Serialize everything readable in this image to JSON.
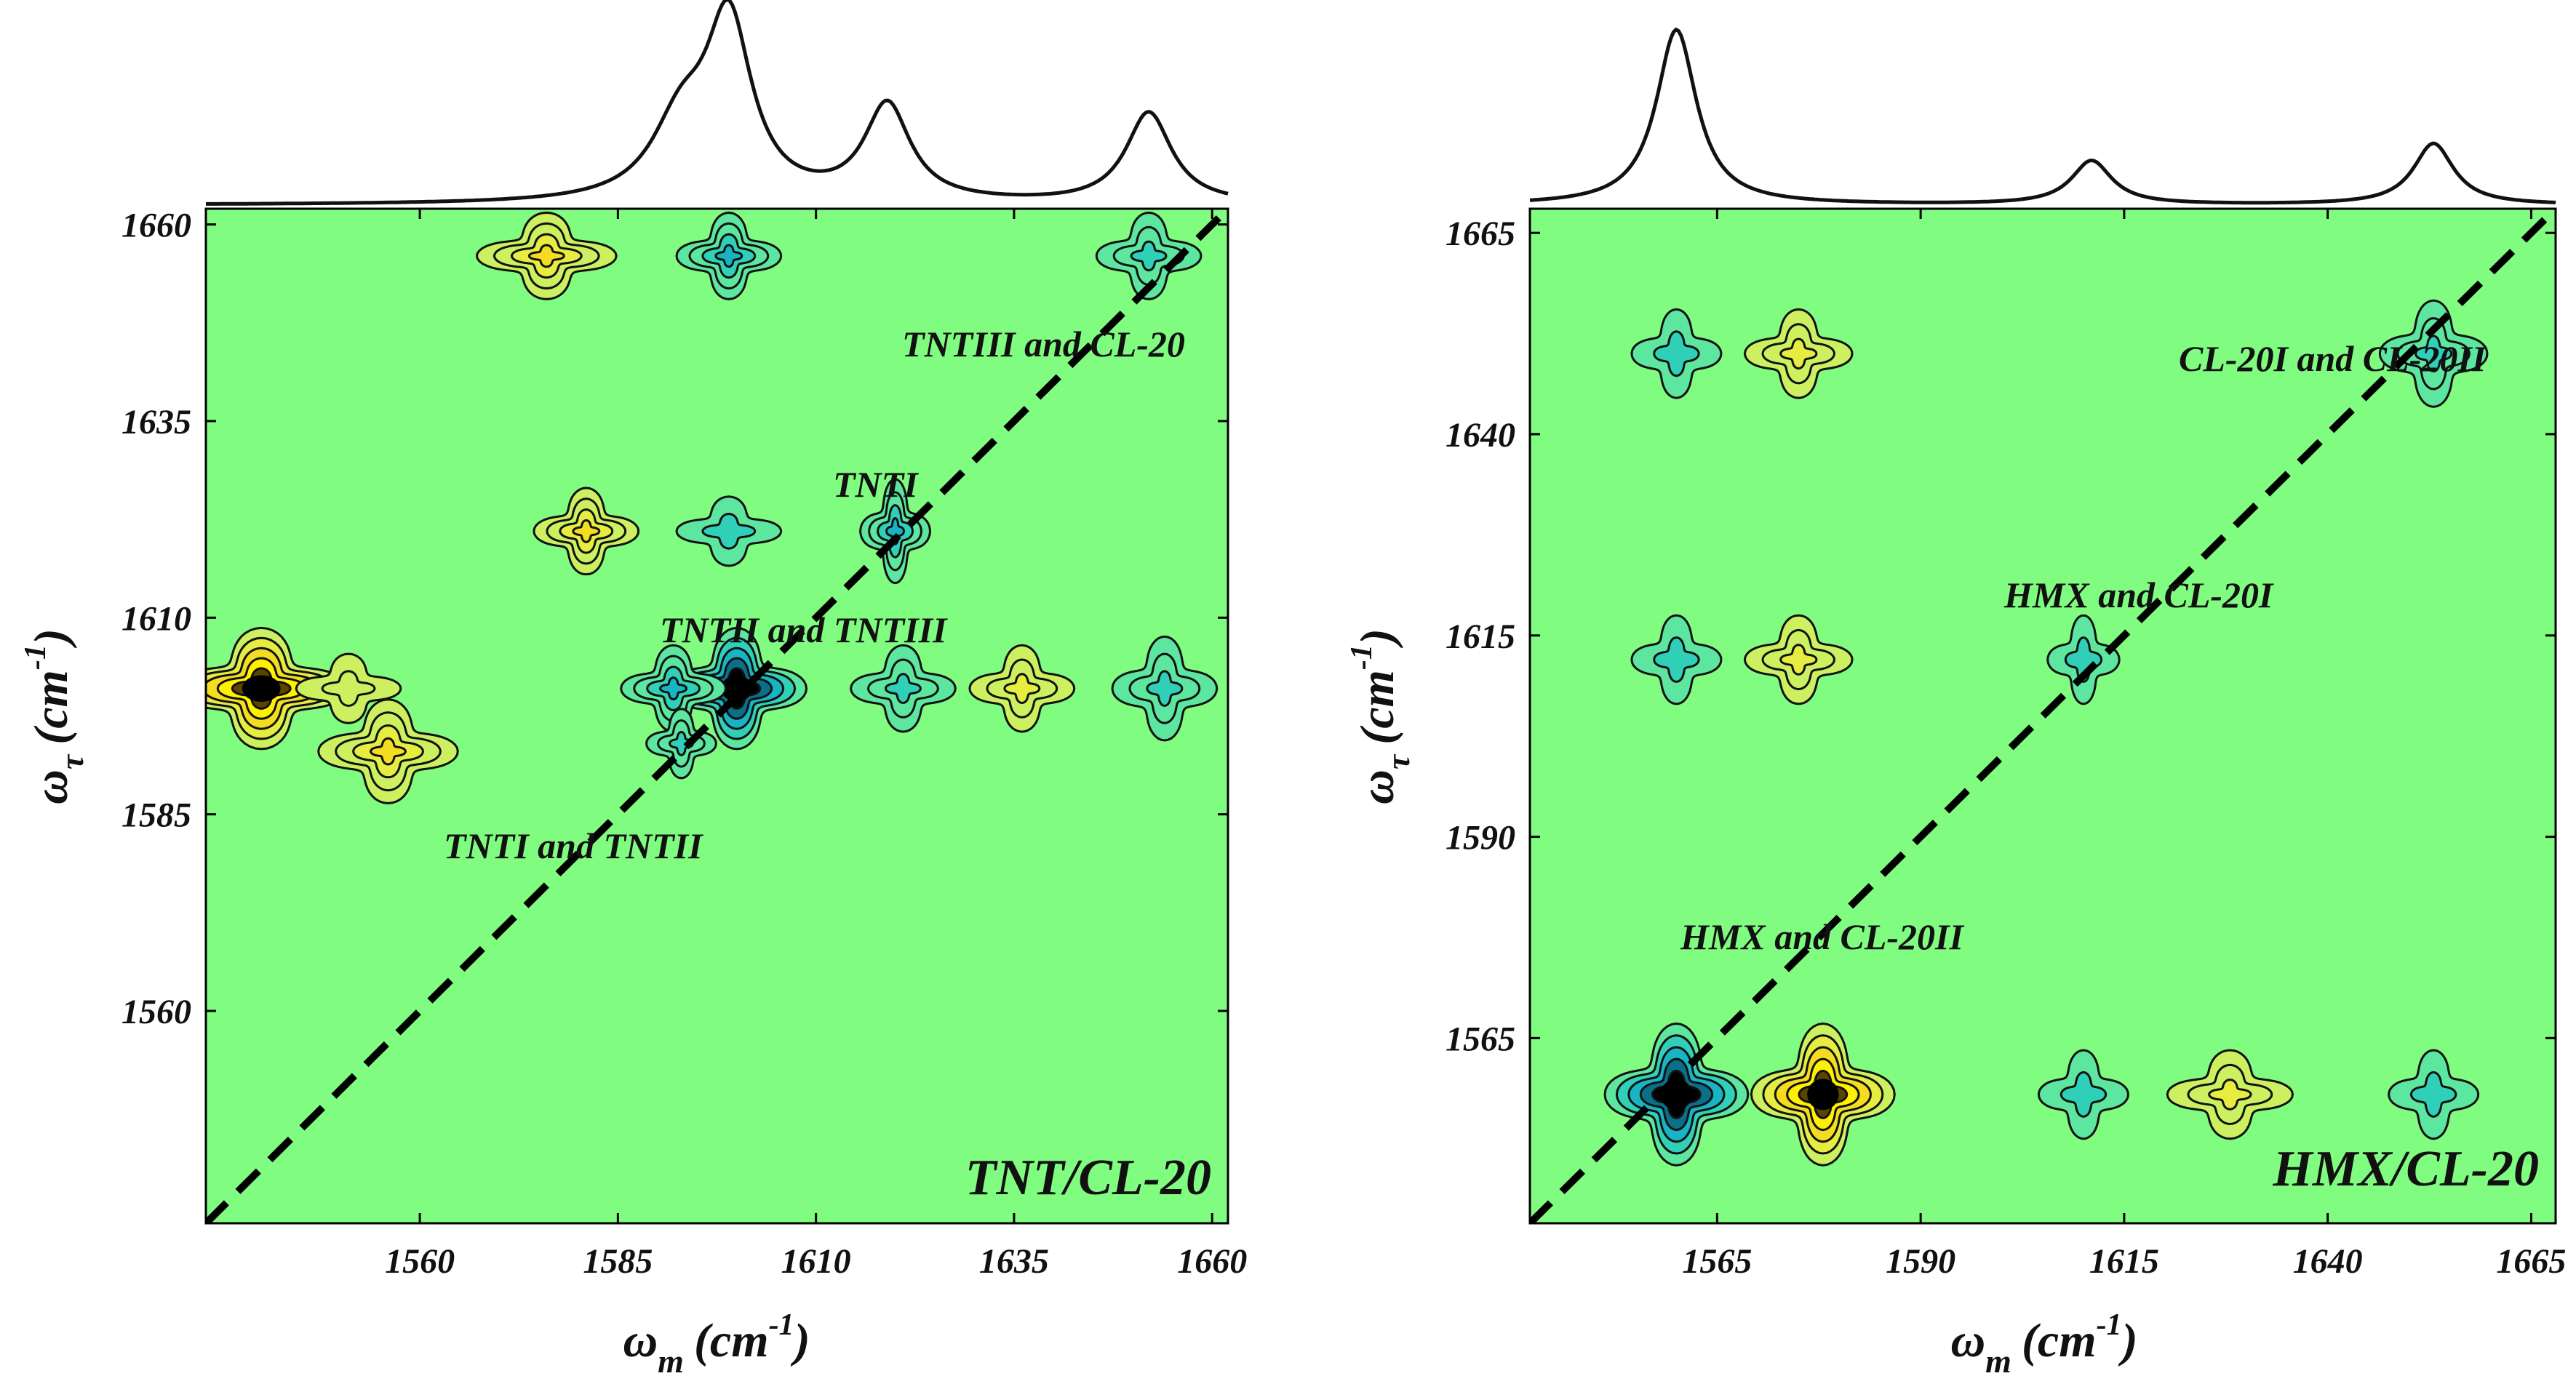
{
  "chart_data": [
    {
      "type": "heatmap",
      "subtype": "2D correlation contour map with top 1D spectrum",
      "panel_label": "TNT/CL-20",
      "xlabel": {
        "symbol": "ω",
        "subscript": "m",
        "unit": "(cm",
        "unit_sup": "-1",
        "unit_close": ")"
      },
      "ylabel": {
        "symbol": "ω",
        "subscript": "τ",
        "unit": "(cm",
        "unit_sup": "-1",
        "unit_close": ")"
      },
      "xlim": [
        1533,
        1662
      ],
      "ylim": [
        1533,
        1662
      ],
      "xticks": [
        1560,
        1585,
        1610,
        1635,
        1660
      ],
      "yticks": [
        1560,
        1585,
        1610,
        1635,
        1660
      ],
      "diagonal": true,
      "background_color": "#80fc80",
      "spectrum_peaks": [
        {
          "center": 1593,
          "width": 4.5,
          "height": 0.42
        },
        {
          "center": 1599,
          "width": 3.5,
          "height": 1.0
        },
        {
          "center": 1619,
          "width": 3.5,
          "height": 0.55
        },
        {
          "center": 1652,
          "width": 3.5,
          "height": 0.52
        }
      ],
      "spots": [
        {
          "x": 1540,
          "y": 1601,
          "sx": 5,
          "sy": 3.5,
          "level": 1.0,
          "sign": 1
        },
        {
          "x": 1551,
          "y": 1601,
          "sx": 3,
          "sy": 2,
          "level": 0.35,
          "sign": 1
        },
        {
          "x": 1556,
          "y": 1593,
          "sx": 4,
          "sy": 3,
          "level": 0.6,
          "sign": 1
        },
        {
          "x": 1600,
          "y": 1601,
          "sx": 4,
          "sy": 3.5,
          "level": 1.0,
          "sign": -1
        },
        {
          "x": 1592,
          "y": 1601,
          "sx": 3,
          "sy": 2.5,
          "level": 0.6,
          "sign": -1
        },
        {
          "x": 1593,
          "y": 1594,
          "sx": 2,
          "sy": 2,
          "level": 0.5,
          "sign": -1
        },
        {
          "x": 1599,
          "y": 1621,
          "sx": 3,
          "sy": 2,
          "level": 0.4,
          "sign": -1
        },
        {
          "x": 1576,
          "y": 1656,
          "sx": 4,
          "sy": 2.5,
          "level": 0.6,
          "sign": 1
        },
        {
          "x": 1599,
          "y": 1656,
          "sx": 3,
          "sy": 2.5,
          "level": 0.6,
          "sign": -1
        },
        {
          "x": 1652,
          "y": 1656,
          "sx": 3,
          "sy": 2.5,
          "level": 0.5,
          "sign": -1
        },
        {
          "x": 1581,
          "y": 1621,
          "sx": 3,
          "sy": 2.5,
          "level": 0.6,
          "sign": 1
        },
        {
          "x": 1620,
          "y": 1621,
          "sx": 2,
          "sy": 3,
          "level": 0.6,
          "sign": -1
        },
        {
          "x": 1621,
          "y": 1601,
          "sx": 3,
          "sy": 2.5,
          "level": 0.5,
          "sign": -1
        },
        {
          "x": 1636,
          "y": 1601,
          "sx": 3,
          "sy": 2.5,
          "level": 0.55,
          "sign": 1
        },
        {
          "x": 1654,
          "y": 1601,
          "sx": 3,
          "sy": 3,
          "level": 0.55,
          "sign": -1
        }
      ],
      "annotations": [
        "TNTIII and CL-20",
        "TNTI",
        "TNTII and TNTIII",
        "TNTI and TNTII"
      ]
    },
    {
      "type": "heatmap",
      "subtype": "2D correlation contour map with top 1D spectrum",
      "panel_label": "HMX/CL-20",
      "xlabel": {
        "symbol": "ω",
        "subscript": "m",
        "unit": "(cm",
        "unit_sup": "-1",
        "unit_close": ")"
      },
      "ylabel": {
        "symbol": "ω",
        "subscript": "τ",
        "unit": "(cm",
        "unit_sup": "-1",
        "unit_close": ")"
      },
      "xlim": [
        1542,
        1668
      ],
      "ylim": [
        1542,
        1668
      ],
      "xticks": [
        1565,
        1590,
        1615,
        1640,
        1665
      ],
      "yticks": [
        1565,
        1590,
        1615,
        1640,
        1665
      ],
      "diagonal": true,
      "background_color": "#80fc80",
      "spectrum_peaks": [
        {
          "center": 1560,
          "width": 3.0,
          "height": 1.0
        },
        {
          "center": 1611,
          "width": 3.0,
          "height": 0.25
        },
        {
          "center": 1653,
          "width": 3.0,
          "height": 0.35
        }
      ],
      "spots": [
        {
          "x": 1560,
          "y": 1558,
          "sx": 4,
          "sy": 4,
          "level": 1.0,
          "sign": -1
        },
        {
          "x": 1578,
          "y": 1558,
          "sx": 4,
          "sy": 4,
          "level": 1.0,
          "sign": 1
        },
        {
          "x": 1560,
          "y": 1650,
          "sx": 2.5,
          "sy": 2.5,
          "level": 0.4,
          "sign": -1
        },
        {
          "x": 1575,
          "y": 1650,
          "sx": 3,
          "sy": 2.5,
          "level": 0.45,
          "sign": 1
        },
        {
          "x": 1653,
          "y": 1650,
          "sx": 3,
          "sy": 3,
          "level": 0.5,
          "sign": -1
        },
        {
          "x": 1560,
          "y": 1612,
          "sx": 2.5,
          "sy": 2.5,
          "level": 0.4,
          "sign": -1
        },
        {
          "x": 1575,
          "y": 1612,
          "sx": 3,
          "sy": 2.5,
          "level": 0.45,
          "sign": 1
        },
        {
          "x": 1610,
          "y": 1612,
          "sx": 2,
          "sy": 2.5,
          "level": 0.4,
          "sign": -1
        },
        {
          "x": 1610,
          "y": 1558,
          "sx": 2.5,
          "sy": 2.5,
          "level": 0.4,
          "sign": -1
        },
        {
          "x": 1628,
          "y": 1558,
          "sx": 3.5,
          "sy": 2.5,
          "level": 0.45,
          "sign": 1
        },
        {
          "x": 1653,
          "y": 1558,
          "sx": 2.5,
          "sy": 2.5,
          "level": 0.4,
          "sign": -1
        }
      ],
      "annotations": [
        "CL-20I and CL-20II",
        "HMX and CL-20I",
        "HMX and CL-20II"
      ]
    }
  ]
}
